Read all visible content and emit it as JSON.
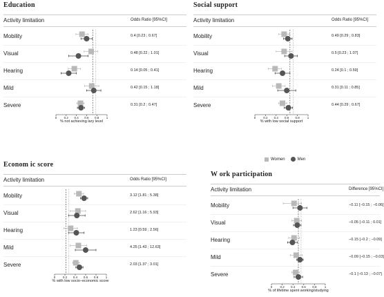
{
  "legend": {
    "women_label": "Women",
    "men_label": "Men",
    "women_color": "#b9b9b9",
    "men_color": "#555555"
  },
  "chart_data": [
    {
      "type": "forest",
      "title": "Education",
      "header_label": "Activity limitation",
      "effect_header": "Odds Ratio [95%CI]",
      "xlabel": "% not achieving lary level",
      "xlim": [
        0,
        1
      ],
      "ticks": [
        "0",
        "0.2",
        "0.4",
        "0.6",
        "0.8",
        "1"
      ],
      "ref_lines": [
        0.72,
        0.78
      ],
      "rows": [
        {
          "label": "Mobility",
          "effect": "0.4 [0.23 ; 0.67]",
          "women": {
            "est": 0.51,
            "lo": 0.39,
            "hi": 0.63
          },
          "men": {
            "est": 0.6,
            "lo": 0.49,
            "hi": 0.71
          }
        },
        {
          "label": "Visual",
          "effect": "0.48 [0.22 ; 1.01]",
          "women": {
            "est": 0.69,
            "lo": 0.55,
            "hi": 0.82
          },
          "men": {
            "est": 0.44,
            "lo": 0.25,
            "hi": 0.63
          }
        },
        {
          "label": "Hearing",
          "effect": "0.14 [0.05 ; 0.41]",
          "women": {
            "est": 0.36,
            "lo": 0.24,
            "hi": 0.48
          },
          "men": {
            "est": 0.25,
            "lo": 0.1,
            "hi": 0.4
          }
        },
        {
          "label": "Mild",
          "effect": "0.42 [0.15 ; 1.18]",
          "women": {
            "est": 0.7,
            "lo": 0.56,
            "hi": 0.84
          },
          "men": {
            "est": 0.74,
            "lo": 0.6,
            "hi": 0.88
          }
        },
        {
          "label": "Severe",
          "effect": "0.31 [0.2 ; 0.47]",
          "women": {
            "est": 0.48,
            "lo": 0.41,
            "hi": 0.55
          },
          "men": {
            "est": 0.49,
            "lo": 0.42,
            "hi": 0.56
          }
        }
      ]
    },
    {
      "type": "forest",
      "title": "Social support",
      "header_label": "Activity limitation",
      "effect_header": "Odds Ratio [95%CI]",
      "xlabel": "% with low social support",
      "xlim": [
        0,
        1
      ],
      "ticks": [
        "0",
        "0.2",
        "0.4",
        "0.6",
        "0.8",
        "1"
      ],
      "ref_lines": [
        0.66,
        0.72
      ],
      "rows": [
        {
          "label": "Mobility",
          "effect": "0.49 [0.29 ; 0.83]",
          "women": {
            "est": 0.55,
            "lo": 0.45,
            "hi": 0.65
          },
          "men": {
            "est": 0.62,
            "lo": 0.54,
            "hi": 0.7
          }
        },
        {
          "label": "Visual",
          "effect": "0.5 [0.23 ; 1.07]",
          "women": {
            "est": 0.55,
            "lo": 0.4,
            "hi": 0.7
          },
          "men": {
            "est": 0.68,
            "lo": 0.56,
            "hi": 0.8
          }
        },
        {
          "label": "Hearing",
          "effect": "0.24 [0.1 ; 0.59]",
          "women": {
            "est": 0.38,
            "lo": 0.25,
            "hi": 0.5
          },
          "men": {
            "est": 0.52,
            "lo": 0.38,
            "hi": 0.66
          }
        },
        {
          "label": "Mild",
          "effect": "0.31 [0.11 ; 0.85]",
          "women": {
            "est": 0.45,
            "lo": 0.33,
            "hi": 0.57
          },
          "men": {
            "est": 0.6,
            "lo": 0.43,
            "hi": 0.77
          }
        },
        {
          "label": "Severe",
          "effect": "0.44 [0.29 ; 0.67]",
          "women": {
            "est": 0.52,
            "lo": 0.45,
            "hi": 0.6
          },
          "men": {
            "est": 0.63,
            "lo": 0.55,
            "hi": 0.71
          }
        }
      ]
    },
    {
      "type": "forest",
      "title": "Econom ic score",
      "header_label": "Activity limitation",
      "effect_header": "Odds Ratio [95%CI]",
      "xlabel": "% with low socio–economic score",
      "xlim": [
        0,
        1
      ],
      "ticks": [
        "0",
        "0.2",
        "0.4",
        "0.6",
        "0.8",
        "1"
      ],
      "ref_lines": [
        0.22,
        0.27
      ],
      "rows": [
        {
          "label": "Mobility",
          "effect": "3.12 [1.81 ; 5.38]",
          "women": {
            "est": 0.47,
            "lo": 0.38,
            "hi": 0.56
          },
          "men": {
            "est": 0.57,
            "lo": 0.5,
            "hi": 0.64
          }
        },
        {
          "label": "Visual",
          "effect": "2.62 [1.16 ; 5.93]",
          "women": {
            "est": 0.45,
            "lo": 0.3,
            "hi": 0.6
          },
          "men": {
            "est": 0.43,
            "lo": 0.27,
            "hi": 0.59
          }
        },
        {
          "label": "Hearing",
          "effect": "1.23 [0.59 ; 2.56]",
          "women": {
            "est": 0.31,
            "lo": 0.18,
            "hi": 0.44
          },
          "men": {
            "est": 0.42,
            "lo": 0.27,
            "hi": 0.57
          }
        },
        {
          "label": "Mild",
          "effect": "4.25 [1.43 ; 12.63]",
          "women": {
            "est": 0.46,
            "lo": 0.3,
            "hi": 0.62
          },
          "men": {
            "est": 0.6,
            "lo": 0.4,
            "hi": 0.8
          }
        },
        {
          "label": "Severe",
          "effect": "2.03 [1.37 ; 3.01]",
          "women": {
            "est": 0.41,
            "lo": 0.35,
            "hi": 0.48
          },
          "men": {
            "est": 0.48,
            "lo": 0.41,
            "hi": 0.55
          }
        }
      ]
    },
    {
      "type": "forest",
      "title": "W ork participation",
      "header_label": "Activity limitation",
      "effect_header": "Difference [95%CI]",
      "xlabel": "% of lifetime spent working/studying",
      "xlim": [
        0,
        1
      ],
      "ticks": [
        "0",
        "0.2",
        "0.4",
        "0.6",
        "0.8",
        "1"
      ],
      "ref_lines": [
        0.5,
        0.55
      ],
      "rows": [
        {
          "label": "Mobility",
          "effect": "−0.11 [−0.15 ; −0.06]",
          "women": {
            "est": 0.42,
            "lo": 0.22,
            "hi": 0.56
          },
          "men": {
            "est": 0.53,
            "lo": 0.4,
            "hi": 0.66
          }
        },
        {
          "label": "Visual",
          "effect": "−0.05 [−0.11 ; 0.01]",
          "women": {
            "est": 0.47,
            "lo": 0.38,
            "hi": 0.56
          },
          "men": {
            "est": 0.48,
            "lo": 0.41,
            "hi": 0.55
          }
        },
        {
          "label": "Hearing",
          "effect": "−0.15 [−0.2 ; −0.09]",
          "women": {
            "est": 0.42,
            "lo": 0.32,
            "hi": 0.52
          },
          "men": {
            "est": 0.39,
            "lo": 0.3,
            "hi": 0.48
          }
        },
        {
          "label": "Mild",
          "effect": "−0.09 [−0.15 ; −0.03]",
          "women": {
            "est": 0.46,
            "lo": 0.35,
            "hi": 0.57
          },
          "men": {
            "est": 0.53,
            "lo": 0.47,
            "hi": 0.59
          }
        },
        {
          "label": "Severe",
          "effect": "−0.1 [−0.13 ; −0.07]",
          "women": {
            "est": 0.45,
            "lo": 0.38,
            "hi": 0.52
          },
          "men": {
            "est": 0.5,
            "lo": 0.42,
            "hi": 0.58
          }
        }
      ]
    }
  ]
}
